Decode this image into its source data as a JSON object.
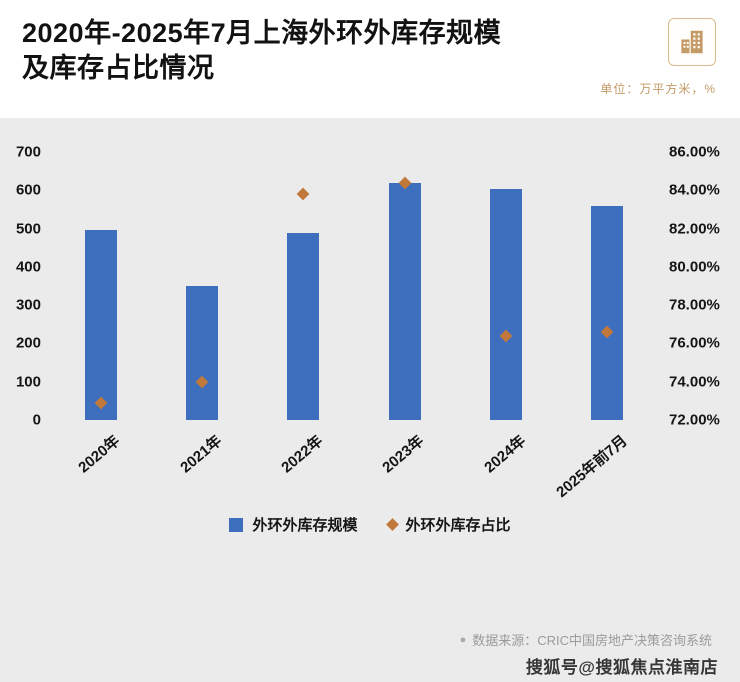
{
  "colors": {
    "bar_color": "#3E6FBE",
    "marker_color": "#C0793B",
    "accent_color": "#C49A66"
  },
  "header": {
    "title_line1": "2020年-2025年7月上海外环外库存规模",
    "title_line2": "及库存占比情况",
    "unit_label": "单位：万平方米，%"
  },
  "chart_data": {
    "type": "bar",
    "title": "2020年-2025年7月上海外环外库存规模及库存占比情况",
    "categories": [
      "2020年",
      "2021年",
      "2022年",
      "2023年",
      "2024年",
      "2025年前7月"
    ],
    "series": [
      {
        "name": "外环外库存规模",
        "type": "bar",
        "axis": "left",
        "values": [
          497,
          350,
          488,
          620,
          603,
          558
        ]
      },
      {
        "name": "外环外库存占比",
        "type": "scatter",
        "axis": "right",
        "values": [
          72.9,
          74.0,
          83.8,
          84.4,
          76.4,
          76.6
        ]
      }
    ],
    "left_axis": {
      "min": 0,
      "max": 700,
      "ticks": [
        700,
        600,
        500,
        400,
        300,
        200,
        100,
        0
      ],
      "label": "万平方米"
    },
    "right_axis": {
      "min": 72,
      "max": 86,
      "ticks": [
        "86.00%",
        "84.00%",
        "82.00%",
        "80.00%",
        "78.00%",
        "76.00%",
        "74.00%",
        "72.00%"
      ],
      "label": "%"
    },
    "grid": false,
    "legend_position": "bottom"
  },
  "legend": {
    "bar_label": "外环外库存规模",
    "marker_label": "外环外库存占比"
  },
  "footer": {
    "bullet": "●",
    "source": "数据来源：CRIC中国房地产决策咨询系统",
    "watermark": "搜狐号@搜狐焦点淮南店"
  }
}
